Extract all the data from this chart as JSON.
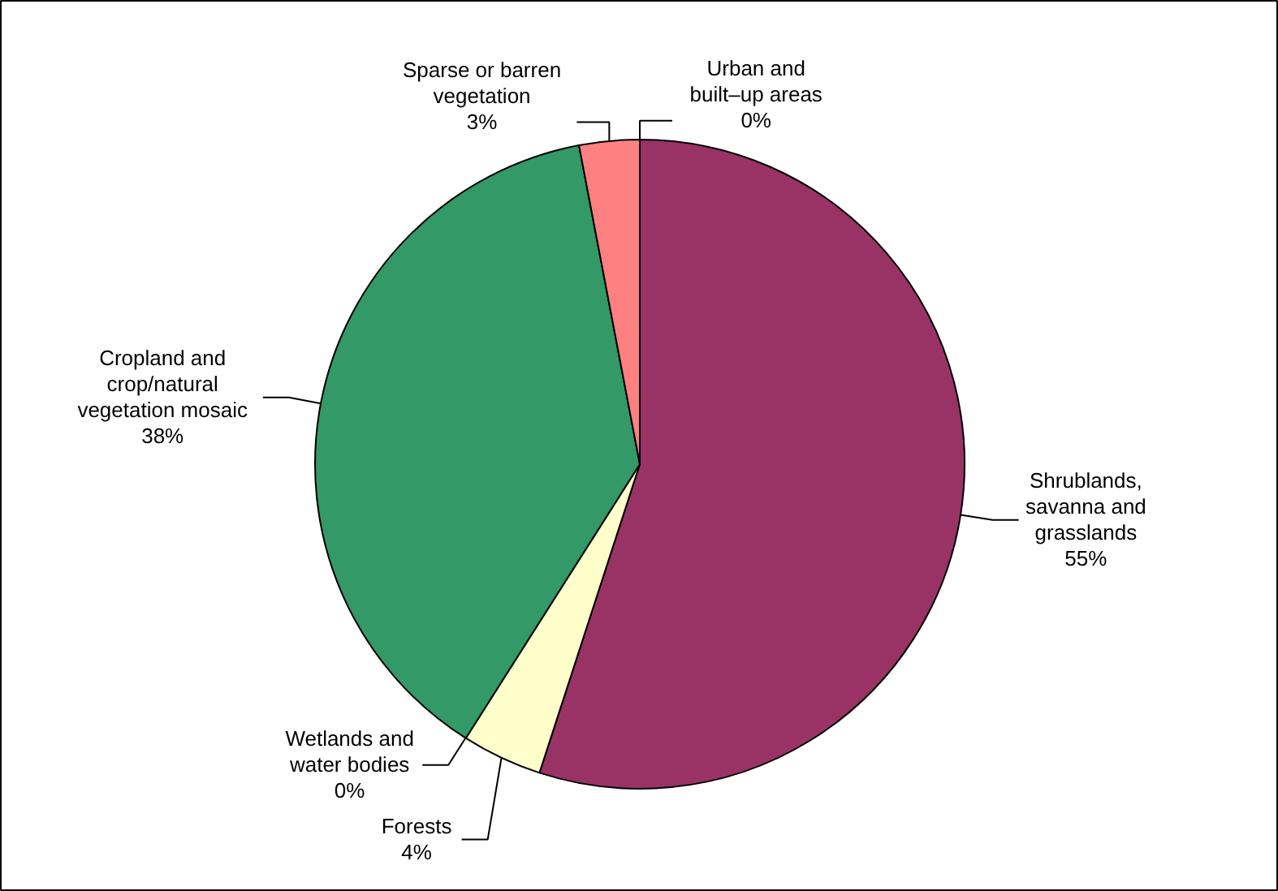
{
  "chart_data": {
    "type": "pie",
    "categories": [
      "Urban and\nbuilt–up areas",
      "Shrublands,\nsavanna and\ngrasslands",
      "Forests",
      "Wetlands and\nwater bodies",
      "Cropland and\ncrop/natural\nvegetation mosaic",
      "Sparse or barren\nvegetation"
    ],
    "values": [
      0,
      55,
      4,
      0,
      38,
      3
    ],
    "value_labels": [
      "0%",
      "55%",
      "4%",
      "0%",
      "38%",
      "3%"
    ],
    "colors": [
      "#333366",
      "#993366",
      "#ffffcc",
      "#00ccff",
      "#339966",
      "#ff8080"
    ]
  }
}
